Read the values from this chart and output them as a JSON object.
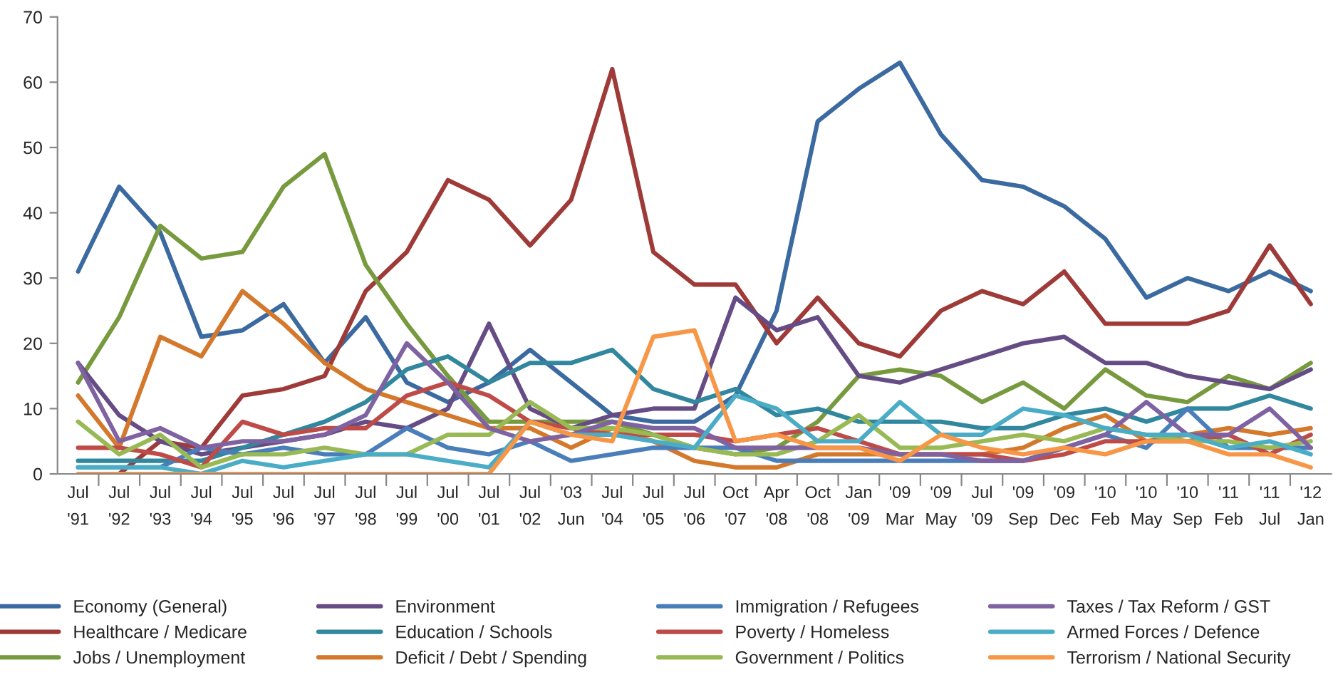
{
  "chart_data": {
    "type": "line",
    "categories": [
      "Jul\n'91",
      "Jul\n'92",
      "Jul\n'93",
      "Jul\n'94",
      "Jul\n'95",
      "Jul\n'96",
      "Jul\n'97",
      "Jul\n'98",
      "Jul\n'99",
      "Jul\n'00",
      "Jul\n'01",
      "Jul\n'02",
      "'03\nJun",
      "Jul\n'04",
      "Jul\n'05",
      "Jul\n'06",
      "Oct\n'07",
      "Apr\n'08",
      "Oct\n'08",
      "Jan\n'09",
      "'09\nMar",
      "'09\nMay",
      "Jul\n'09",
      "'09\nSep",
      "'09\nDec",
      "'10\nFeb",
      "'10\nMay",
      "'10\nSep",
      "'11\nFeb",
      "'11\nJul",
      "'12\nJan"
    ],
    "series": [
      {
        "name": "Economy (General)",
        "color": "#3b6aa0",
        "values": [
          31,
          44,
          37,
          21,
          22,
          26,
          17,
          24,
          14,
          11,
          14,
          19,
          14,
          9,
          8,
          8,
          12,
          25,
          54,
          59,
          63,
          52,
          45,
          44,
          41,
          36,
          27,
          30,
          28,
          31,
          28
        ]
      },
      {
        "name": "Healthcare / Medicare",
        "color": "#9e3a38",
        "values": [
          null,
          0,
          5,
          4,
          12,
          13,
          15,
          28,
          34,
          45,
          42,
          35,
          42,
          62,
          34,
          29,
          29,
          20,
          27,
          20,
          18,
          25,
          28,
          26,
          31,
          23,
          23,
          23,
          25,
          35,
          26
        ]
      },
      {
        "name": "Jobs / Unemployment",
        "color": "#789a3e",
        "values": [
          14,
          24,
          38,
          33,
          34,
          44,
          49,
          32,
          23,
          15,
          8,
          8,
          8,
          8,
          6,
          4,
          3,
          4,
          8,
          15,
          16,
          15,
          11,
          14,
          10,
          16,
          12,
          11,
          15,
          13,
          17
        ]
      },
      {
        "name": "Environment",
        "color": "#664c85",
        "values": [
          17,
          9,
          5,
          3,
          4,
          5,
          6,
          8,
          7,
          10,
          23,
          10,
          7,
          9,
          10,
          10,
          27,
          22,
          24,
          15,
          14,
          16,
          18,
          20,
          21,
          17,
          17,
          15,
          14,
          13,
          16
        ]
      },
      {
        "name": "Education / Schools",
        "color": "#31879e",
        "values": [
          2,
          2,
          2,
          2,
          4,
          6,
          8,
          11,
          16,
          18,
          14,
          17,
          17,
          19,
          13,
          11,
          13,
          9,
          10,
          8,
          8,
          8,
          7,
          7,
          9,
          10,
          8,
          10,
          10,
          12,
          10
        ]
      },
      {
        "name": "Deficit / Debt / Spending",
        "color": "#d4782c",
        "values": [
          12,
          4,
          21,
          18,
          28,
          23,
          17,
          13,
          11,
          9,
          7,
          7,
          4,
          7,
          5,
          2,
          1,
          1,
          3,
          3,
          3,
          3,
          3,
          4,
          7,
          9,
          5,
          6,
          7,
          6,
          7
        ]
      },
      {
        "name": "Immigration / Refugees",
        "color": "#4a7ebb",
        "values": [
          1,
          1,
          1,
          4,
          3,
          4,
          3,
          3,
          7,
          4,
          3,
          5,
          2,
          3,
          4,
          4,
          4,
          2,
          2,
          2,
          2,
          2,
          2,
          2,
          4,
          6,
          4,
          10,
          4,
          4,
          4
        ]
      },
      {
        "name": "Poverty / Homeless",
        "color": "#be4b48",
        "values": [
          4,
          4,
          3,
          1,
          8,
          6,
          7,
          7,
          12,
          14,
          12,
          8,
          7,
          6,
          6,
          6,
          5,
          6,
          7,
          5,
          3,
          3,
          3,
          2,
          3,
          5,
          5,
          5,
          6,
          3,
          6
        ]
      },
      {
        "name": "Government / Politics",
        "color": "#98b954",
        "values": [
          8,
          3,
          6,
          1,
          3,
          3,
          4,
          3,
          3,
          6,
          6,
          11,
          7,
          7,
          6,
          4,
          3,
          3,
          5,
          9,
          4,
          4,
          5,
          6,
          5,
          7,
          6,
          5,
          5,
          4,
          5
        ]
      },
      {
        "name": "Taxes / Tax Reform / GST",
        "color": "#7e62a1",
        "values": [
          17,
          5,
          7,
          4,
          5,
          5,
          6,
          9,
          20,
          14,
          7,
          5,
          6,
          8,
          7,
          7,
          4,
          4,
          4,
          4,
          3,
          3,
          2,
          2,
          4,
          6,
          11,
          6,
          6,
          10,
          4
        ]
      },
      {
        "name": "Armed Forces / Defence",
        "color": "#4bacc6",
        "values": [
          1,
          1,
          1,
          0,
          2,
          1,
          2,
          3,
          3,
          2,
          1,
          8,
          6,
          6,
          5,
          4,
          12,
          10,
          5,
          5,
          11,
          6,
          6,
          10,
          9,
          7,
          6,
          6,
          4,
          5,
          3
        ]
      },
      {
        "name": "Terrorism / National Security",
        "color": "#f79646",
        "values": [
          0,
          0,
          0,
          0,
          0,
          0,
          0,
          0,
          0,
          0,
          0,
          8,
          6,
          5,
          21,
          22,
          5,
          6,
          4,
          4,
          2,
          6,
          4,
          3,
          4,
          3,
          5,
          5,
          3,
          3,
          1
        ]
      }
    ],
    "ylim": [
      0,
      70
    ],
    "yticks": [
      0,
      10,
      20,
      30,
      40,
      50,
      60,
      70
    ],
    "grid": false,
    "legend": "bottom",
    "marker": "none",
    "line_style": "solid"
  }
}
